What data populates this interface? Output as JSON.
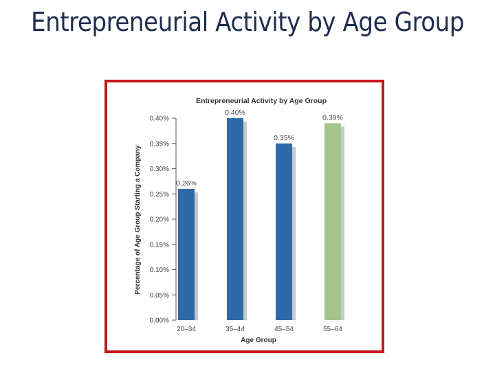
{
  "slide": {
    "title": "Entrepreneurial Activity by Age Group"
  },
  "chart_data": {
    "type": "bar",
    "title": "Entrepreneurial Activity by Age Group",
    "xlabel": "Age Group",
    "ylabel": "Percentage of Age Group Starting a Company",
    "categories": [
      "20–34",
      "35–44",
      "45–54",
      "55–64"
    ],
    "values": [
      0.26,
      0.4,
      0.35,
      0.39
    ],
    "data_labels": [
      "0.26%",
      "0.40%",
      "0.35%",
      "0.39%"
    ],
    "yticks": [
      "0.00%",
      "0.05%",
      "0.10%",
      "0.15%",
      "0.20%",
      "0.25%",
      "0.30%",
      "0.35%",
      "0.40%"
    ],
    "ylim": [
      0,
      0.4
    ],
    "grid": false,
    "colors": {
      "bar": "#2f6aa8",
      "bar_highlight": "#a3c58a",
      "shadow": "#c5c9cf",
      "frame": "#c8161d",
      "title_color": "#1f2e4f",
      "text": "#333333"
    }
  }
}
